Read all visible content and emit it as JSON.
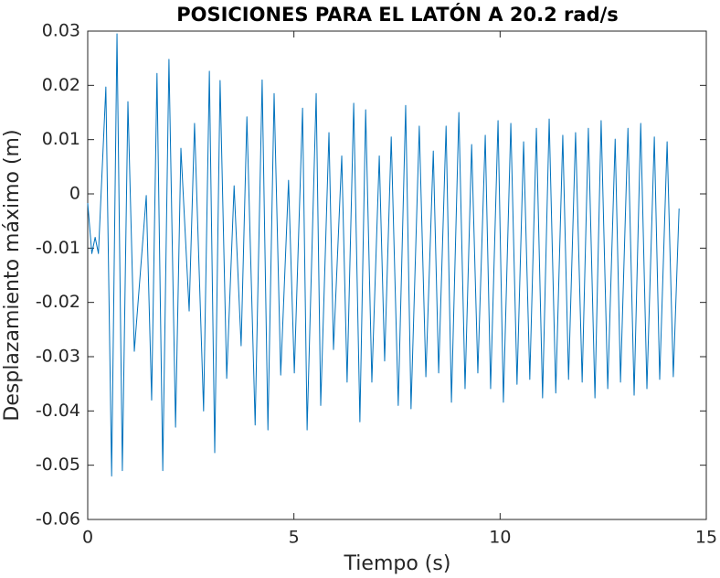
{
  "chart_data": {
    "type": "line",
    "title": "POSICIONES PARA EL LATÓN A 20.2 rad/s",
    "x_label": "Tiempo (s)",
    "y_label": "Desplazamiento máximo (m)",
    "xlim": [
      0,
      15
    ],
    "xticks": [
      0,
      5,
      10,
      15
    ],
    "ylim": [
      -0.06,
      0.03
    ],
    "yticks": [
      -0.06,
      -0.05,
      -0.04,
      -0.03,
      -0.02,
      -0.01,
      0,
      0.01,
      0.02,
      0.03
    ],
    "grid": false,
    "series": [
      {
        "color": "#0072bd",
        "x": [
          0,
          0.1,
          0.18,
          0.26,
          0.44,
          0.58,
          0.71,
          0.84,
          0.975,
          1.13,
          1.42,
          1.55,
          1.68,
          1.82,
          1.97,
          2.13,
          2.26,
          2.46,
          2.59,
          2.81,
          2.95,
          3.08,
          3.21,
          3.37,
          3.55,
          3.72,
          3.86,
          4.06,
          4.23,
          4.37,
          4.52,
          4.68,
          4.87,
          5.01,
          5.21,
          5.32,
          5.54,
          5.65,
          5.85,
          5.96,
          6.16,
          6.29,
          6.45,
          6.6,
          6.74,
          6.89,
          7.07,
          7.2,
          7.36,
          7.53,
          7.71,
          7.84,
          8.04,
          8.2,
          8.38,
          8.51,
          8.69,
          8.82,
          9.0,
          9.15,
          9.31,
          9.46,
          9.64,
          9.77,
          9.95,
          10.08,
          10.26,
          10.41,
          10.57,
          10.72,
          10.88,
          11.03,
          11.19,
          11.35,
          11.52,
          11.66,
          11.83,
          11.99,
          12.14,
          12.3,
          12.45,
          12.61,
          12.79,
          12.92,
          13.1,
          13.25,
          13.41,
          13.56,
          13.74,
          13.87,
          14.05,
          14.2,
          14.34
        ],
        "values": [
          -0.0017,
          -0.011,
          -0.008,
          -0.011,
          0.0197,
          -0.052,
          0.0295,
          -0.051,
          0.017,
          -0.029,
          -0.0003,
          -0.038,
          0.0222,
          -0.051,
          0.0248,
          -0.043,
          0.0084,
          -0.0216,
          0.013,
          -0.04,
          0.0226,
          -0.0477,
          0.0209,
          -0.034,
          0.0015,
          -0.028,
          0.0142,
          -0.0426,
          0.021,
          -0.0435,
          0.0185,
          -0.0334,
          0.0025,
          -0.033,
          0.0158,
          -0.0435,
          0.0185,
          -0.039,
          0.0113,
          -0.0287,
          0.007,
          -0.0347,
          0.0167,
          -0.042,
          0.0155,
          -0.0347,
          0.007,
          -0.0308,
          0.0105,
          -0.039,
          0.0163,
          -0.0396,
          0.0125,
          -0.0337,
          0.0079,
          -0.033,
          0.0125,
          -0.0384,
          0.015,
          -0.0359,
          0.0091,
          -0.033,
          0.0108,
          -0.0359,
          0.0135,
          -0.0384,
          0.013,
          -0.0351,
          0.0096,
          -0.0342,
          0.0121,
          -0.0376,
          0.0138,
          -0.0367,
          0.0108,
          -0.0342,
          0.0113,
          -0.0347,
          0.0121,
          -0.0376,
          0.0135,
          -0.0359,
          0.0101,
          -0.0347,
          0.0121,
          -0.0371,
          0.013,
          -0.0359,
          0.0105,
          -0.0342,
          0.0096,
          -0.0337,
          -0.0027
        ]
      }
    ]
  }
}
